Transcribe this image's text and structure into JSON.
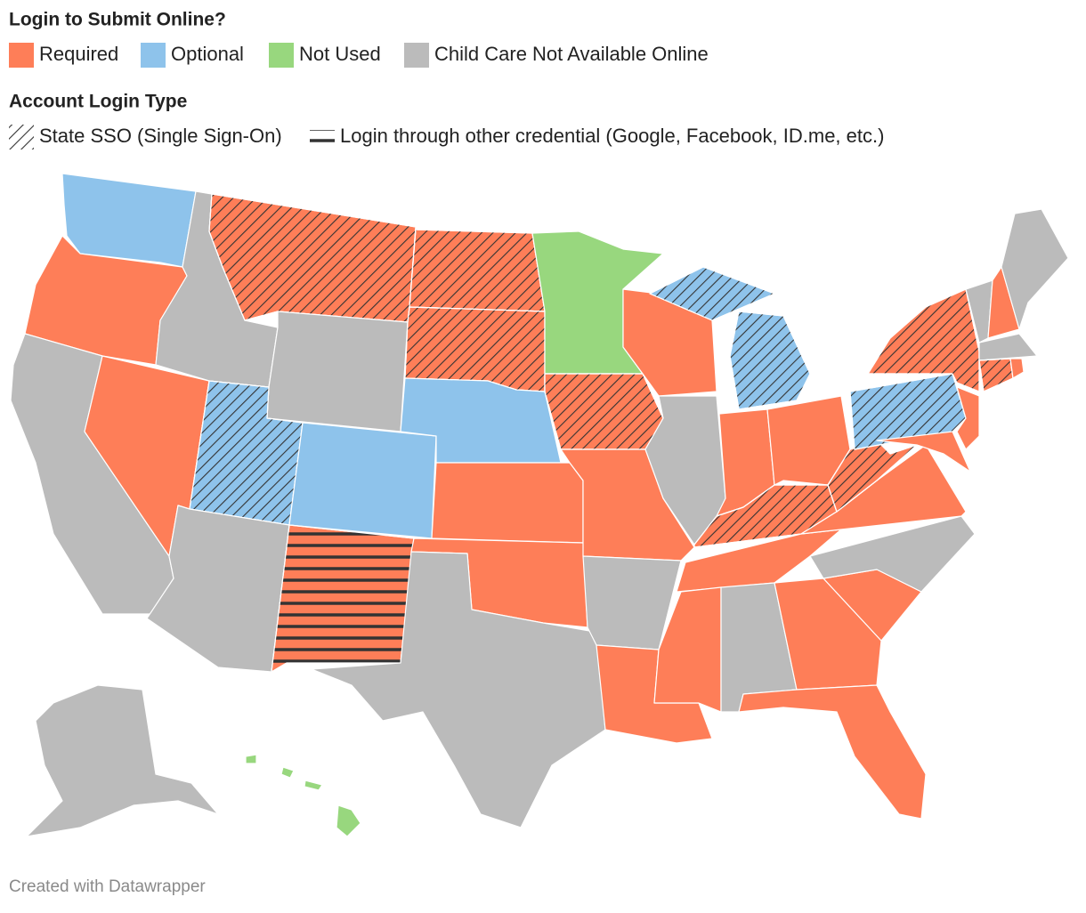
{
  "legend": {
    "title": "Login to Submit Online?",
    "items": [
      {
        "label": "Required",
        "color": "#fe7e58"
      },
      {
        "label": "Optional",
        "color": "#8ec3eb"
      },
      {
        "label": "Not Used",
        "color": "#98d77e"
      },
      {
        "label": "Child Care Not Available Online",
        "color": "#bbbbbb"
      }
    ]
  },
  "login_type": {
    "title": "Account Login Type",
    "items": [
      {
        "label": "State SSO (Single Sign-On)",
        "pattern": "diagonal"
      },
      {
        "label": "Login through other credential (Google, Facebook, ID.me, etc.)",
        "pattern": "horizontal"
      }
    ]
  },
  "footer": "Created with Datawrapper"
}
